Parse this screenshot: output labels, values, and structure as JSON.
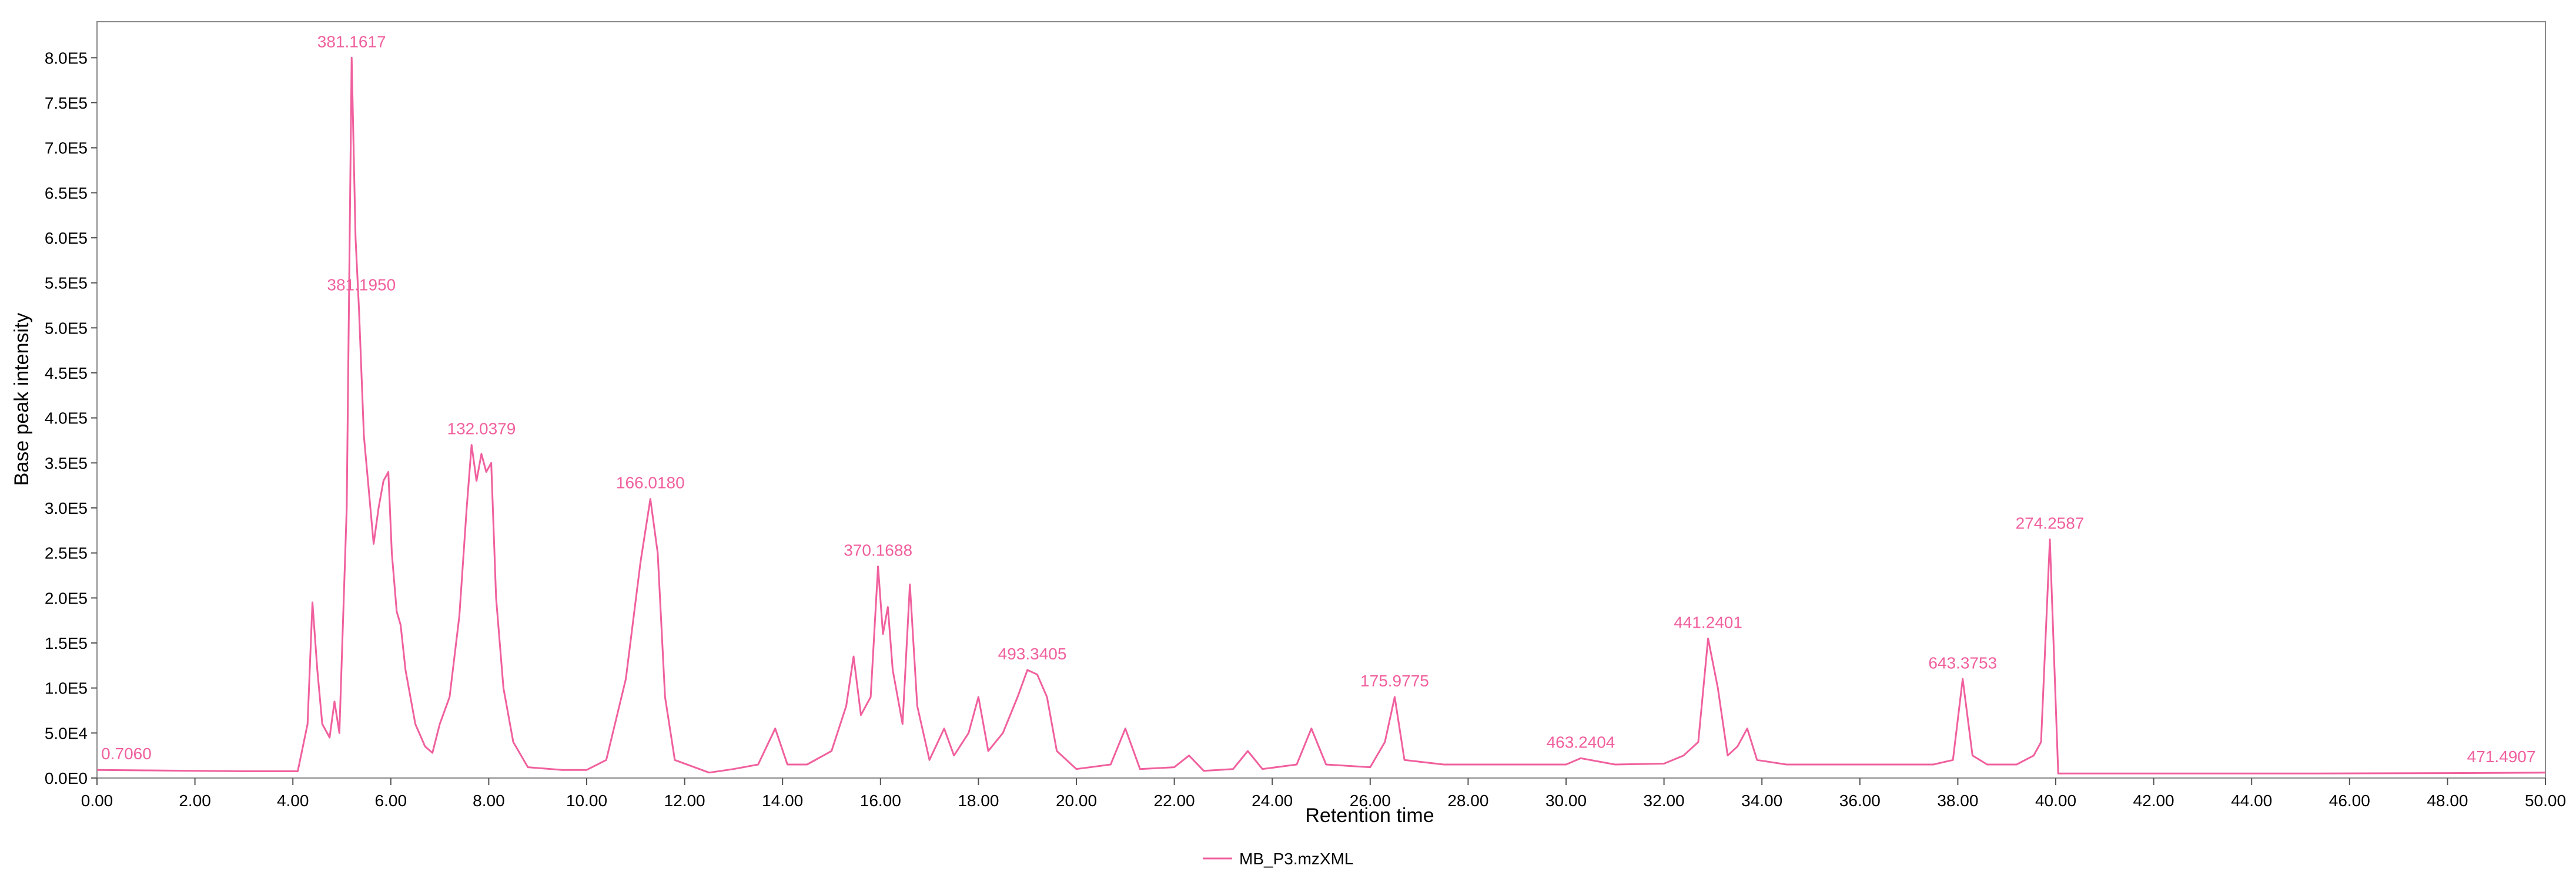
{
  "chart_data": {
    "type": "line",
    "xlabel": "Retention time",
    "ylabel": "Base peak intensity",
    "xlim": [
      0,
      50
    ],
    "ylim": [
      0,
      840000
    ],
    "x_ticks": [
      0,
      2,
      4,
      6,
      8,
      10,
      12,
      14,
      16,
      18,
      20,
      22,
      24,
      26,
      28,
      30,
      32,
      34,
      36,
      38,
      40,
      42,
      44,
      46,
      48,
      50
    ],
    "x_tick_labels": [
      "0.00",
      "2.00",
      "4.00",
      "6.00",
      "8.00",
      "10.00",
      "12.00",
      "14.00",
      "16.00",
      "18.00",
      "20.00",
      "22.00",
      "24.00",
      "26.00",
      "28.00",
      "30.00",
      "32.00",
      "34.00",
      "36.00",
      "38.00",
      "40.00",
      "42.00",
      "44.00",
      "46.00",
      "48.00",
      "50.00"
    ],
    "y_ticks": [
      0,
      50000,
      100000,
      150000,
      200000,
      250000,
      300000,
      350000,
      400000,
      450000,
      500000,
      550000,
      600000,
      650000,
      700000,
      750000,
      800000
    ],
    "y_tick_labels": [
      "0.0E0",
      "5.0E4",
      "1.0E5",
      "1.5E5",
      "2.0E5",
      "2.5E5",
      "3.0E5",
      "3.5E5",
      "4.0E5",
      "4.5E5",
      "5.0E5",
      "5.5E5",
      "6.0E5",
      "6.5E5",
      "7.0E5",
      "7.5E5",
      "8.0E5"
    ],
    "grid": false,
    "legend_position": "bottom-center",
    "color": "#f0609e",
    "series": [
      {
        "name": "MB_P3.mzXML",
        "points": [
          [
            0,
            9000
          ],
          [
            1,
            8500
          ],
          [
            2,
            8000
          ],
          [
            3,
            7500
          ],
          [
            4.1,
            7500
          ],
          [
            4.3,
            60000
          ],
          [
            4.4,
            195000
          ],
          [
            4.5,
            120000
          ],
          [
            4.6,
            60000
          ],
          [
            4.75,
            45000
          ],
          [
            4.85,
            85000
          ],
          [
            4.95,
            50000
          ],
          [
            5.1,
            300000
          ],
          [
            5.2,
            800000
          ],
          [
            5.28,
            600000
          ],
          [
            5.35,
            520000
          ],
          [
            5.45,
            380000
          ],
          [
            5.55,
            320000
          ],
          [
            5.65,
            260000
          ],
          [
            5.75,
            300000
          ],
          [
            5.85,
            330000
          ],
          [
            5.95,
            340000
          ],
          [
            6.02,
            250000
          ],
          [
            6.12,
            185000
          ],
          [
            6.2,
            170000
          ],
          [
            6.3,
            120000
          ],
          [
            6.5,
            60000
          ],
          [
            6.7,
            35000
          ],
          [
            6.85,
            28000
          ],
          [
            7.0,
            60000
          ],
          [
            7.2,
            90000
          ],
          [
            7.4,
            180000
          ],
          [
            7.55,
            300000
          ],
          [
            7.65,
            370000
          ],
          [
            7.75,
            330000
          ],
          [
            7.85,
            360000
          ],
          [
            7.95,
            340000
          ],
          [
            8.05,
            350000
          ],
          [
            8.15,
            200000
          ],
          [
            8.3,
            100000
          ],
          [
            8.5,
            40000
          ],
          [
            8.8,
            12000
          ],
          [
            9.5,
            9000
          ],
          [
            10.0,
            9000
          ],
          [
            10.4,
            20000
          ],
          [
            10.8,
            110000
          ],
          [
            11.1,
            240000
          ],
          [
            11.3,
            310000
          ],
          [
            11.45,
            250000
          ],
          [
            11.6,
            90000
          ],
          [
            11.8,
            20000
          ],
          [
            12.5,
            6000
          ],
          [
            13.0,
            10000
          ],
          [
            13.5,
            15000
          ],
          [
            13.85,
            55000
          ],
          [
            14.1,
            15000
          ],
          [
            14.5,
            15000
          ],
          [
            15.0,
            30000
          ],
          [
            15.3,
            80000
          ],
          [
            15.45,
            135000
          ],
          [
            15.6,
            70000
          ],
          [
            15.8,
            90000
          ],
          [
            15.95,
            235000
          ],
          [
            16.05,
            160000
          ],
          [
            16.15,
            190000
          ],
          [
            16.25,
            120000
          ],
          [
            16.45,
            60000
          ],
          [
            16.6,
            215000
          ],
          [
            16.75,
            80000
          ],
          [
            17.0,
            20000
          ],
          [
            17.3,
            55000
          ],
          [
            17.5,
            25000
          ],
          [
            17.8,
            50000
          ],
          [
            18.0,
            90000
          ],
          [
            18.2,
            30000
          ],
          [
            18.5,
            50000
          ],
          [
            18.8,
            90000
          ],
          [
            19.0,
            120000
          ],
          [
            19.2,
            115000
          ],
          [
            19.4,
            90000
          ],
          [
            19.6,
            30000
          ],
          [
            20.0,
            10000
          ],
          [
            20.7,
            15000
          ],
          [
            21.0,
            55000
          ],
          [
            21.3,
            10000
          ],
          [
            22.0,
            12000
          ],
          [
            22.3,
            25000
          ],
          [
            22.6,
            8000
          ],
          [
            23.2,
            10000
          ],
          [
            23.5,
            30000
          ],
          [
            23.8,
            10000
          ],
          [
            24.5,
            15000
          ],
          [
            24.8,
            55000
          ],
          [
            25.1,
            15000
          ],
          [
            26.0,
            12000
          ],
          [
            26.3,
            40000
          ],
          [
            26.5,
            90000
          ],
          [
            26.7,
            20000
          ],
          [
            27.5,
            15000
          ],
          [
            28.0,
            15000
          ],
          [
            29.0,
            15000
          ],
          [
            30.0,
            15000
          ],
          [
            30.3,
            22000
          ],
          [
            31.0,
            15000
          ],
          [
            32.0,
            16000
          ],
          [
            32.4,
            25000
          ],
          [
            32.7,
            40000
          ],
          [
            32.9,
            155000
          ],
          [
            33.1,
            100000
          ],
          [
            33.3,
            25000
          ],
          [
            33.5,
            35000
          ],
          [
            33.7,
            55000
          ],
          [
            33.9,
            20000
          ],
          [
            34.5,
            15000
          ],
          [
            36.0,
            15000
          ],
          [
            37.5,
            15000
          ],
          [
            37.9,
            20000
          ],
          [
            38.1,
            110000
          ],
          [
            38.3,
            25000
          ],
          [
            38.6,
            15000
          ],
          [
            39.2,
            15000
          ],
          [
            39.55,
            25000
          ],
          [
            39.7,
            40000
          ],
          [
            39.88,
            265000
          ],
          [
            40.05,
            5000
          ],
          [
            42,
            5000
          ],
          [
            45,
            5000
          ],
          [
            48,
            5500
          ],
          [
            50,
            6000
          ]
        ]
      }
    ],
    "annotations": [
      {
        "x": 5.2,
        "y": 800000,
        "text": "381.1617"
      },
      {
        "x": 5.4,
        "y": 530000,
        "text": "381.1950"
      },
      {
        "x": 7.85,
        "y": 370000,
        "text": "132.0379"
      },
      {
        "x": 11.3,
        "y": 310000,
        "text": "166.0180"
      },
      {
        "x": 15.95,
        "y": 235000,
        "text": "370.1688"
      },
      {
        "x": 19.1,
        "y": 120000,
        "text": "493.3405"
      },
      {
        "x": 26.5,
        "y": 90000,
        "text": "175.9775"
      },
      {
        "x": 30.3,
        "y": 22000,
        "text": "463.2404"
      },
      {
        "x": 32.9,
        "y": 155000,
        "text": "441.2401"
      },
      {
        "x": 38.1,
        "y": 110000,
        "text": "643.3753"
      },
      {
        "x": 39.88,
        "y": 265000,
        "text": "274.2587"
      },
      {
        "x": 0.6,
        "y": 9000,
        "text": "0.7060"
      },
      {
        "x": 49.1,
        "y": 6000,
        "text": "471.4907"
      }
    ]
  }
}
